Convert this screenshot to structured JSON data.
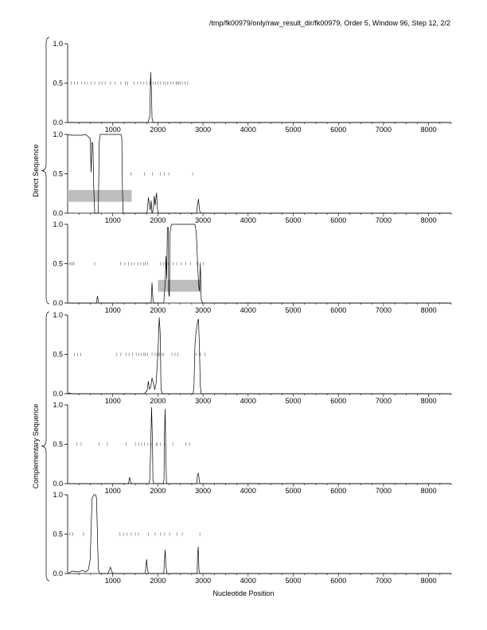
{
  "header": "/tmp/fk00979/only/raw_result_dir/fk00979, Order 5, Window 96, Step 12, 2/2",
  "xlabel": "Nucleotide Position",
  "group_labels": [
    "Direct Sequence",
    "Complementary Sequence"
  ],
  "chart_data": {
    "type": "line",
    "xlim": [
      0,
      8500
    ],
    "ylim": [
      0,
      1
    ],
    "x_ticks": [
      1000,
      2000,
      3000,
      4000,
      5000,
      6000,
      7000,
      8000
    ],
    "y_ticks": [
      "0.0",
      "0.5",
      "1.0"
    ],
    "panels": [
      {
        "group": "Direct Sequence",
        "line": [
          [
            0,
            0
          ],
          [
            1780,
            0
          ],
          [
            1820,
            0.08
          ],
          [
            1840,
            0.64
          ],
          [
            1860,
            0.35
          ],
          [
            1870,
            0.05
          ],
          [
            1900,
            0
          ],
          [
            8500,
            0
          ]
        ],
        "marks": [
          80,
          150,
          220,
          310,
          380,
          440,
          520,
          600,
          700,
          760,
          830,
          950,
          1050,
          1180,
          1280,
          1330,
          1470,
          1550,
          1620,
          1690,
          1750,
          1820,
          1900,
          1950,
          2000,
          2060,
          2120,
          2170,
          2220,
          2280,
          2340,
          2400,
          2430,
          2460,
          2490,
          2540,
          2600,
          2660
        ]
      },
      {
        "group": "Direct Sequence",
        "line": [
          [
            0,
            1
          ],
          [
            80,
            0.99
          ],
          [
            200,
            0.99
          ],
          [
            320,
            0.99
          ],
          [
            400,
            1.0
          ],
          [
            460,
            0.97
          ],
          [
            500,
            0.95
          ],
          [
            520,
            0.52
          ],
          [
            540,
            0.9
          ],
          [
            560,
            0.88
          ],
          [
            580,
            0.3
          ],
          [
            600,
            0
          ],
          [
            680,
            0
          ],
          [
            700,
            0.9
          ],
          [
            720,
            1
          ],
          [
            1180,
            1
          ],
          [
            1200,
            0.96
          ],
          [
            1215,
            0.3
          ],
          [
            1230,
            0
          ],
          [
            1760,
            0
          ],
          [
            1790,
            0.2
          ],
          [
            1810,
            0.12
          ],
          [
            1830,
            0.04
          ],
          [
            1850,
            0.16
          ],
          [
            1870,
            0
          ],
          [
            1900,
            0.05
          ],
          [
            1920,
            0.22
          ],
          [
            1940,
            0.1
          ],
          [
            1970,
            0.26
          ],
          [
            1990,
            0.05
          ],
          [
            2010,
            0
          ],
          [
            2860,
            0
          ],
          [
            2880,
            0.12
          ],
          [
            2900,
            0.18
          ],
          [
            2920,
            0.05
          ],
          [
            2940,
            0
          ],
          [
            8500,
            0
          ]
        ],
        "marks": [
          1400,
          1700,
          1880,
          2050,
          2140,
          2240,
          2770
        ],
        "hsp": [
          0,
          1420,
          0.22
        ]
      },
      {
        "group": "Direct Sequence",
        "line": [
          [
            0,
            0
          ],
          [
            640,
            0
          ],
          [
            660,
            0.09
          ],
          [
            680,
            0.02
          ],
          [
            700,
            0
          ],
          [
            1850,
            0
          ],
          [
            1870,
            0.26
          ],
          [
            1890,
            0.05
          ],
          [
            1910,
            0
          ],
          [
            2130,
            0
          ],
          [
            2160,
            0.25
          ],
          [
            2180,
            0.6
          ],
          [
            2195,
            0.3
          ],
          [
            2210,
            0.96
          ],
          [
            2230,
            0.96
          ],
          [
            2240,
            0.12
          ],
          [
            2255,
            0.08
          ],
          [
            2270,
            0.9
          ],
          [
            2300,
            1
          ],
          [
            2820,
            1
          ],
          [
            2850,
            0.9
          ],
          [
            2870,
            0.65
          ],
          [
            2900,
            0.25
          ],
          [
            2920,
            0.15
          ],
          [
            2940,
            0.5
          ],
          [
            2960,
            0.05
          ],
          [
            2990,
            0
          ],
          [
            8500,
            0
          ]
        ],
        "marks": [
          40,
          80,
          110,
          140,
          600,
          1170,
          1270,
          1350,
          1420,
          1480,
          1560,
          1620,
          1680,
          1720,
          1770,
          2060,
          2120,
          2170,
          2230,
          2340,
          2420,
          2520,
          2620,
          2720,
          2860,
          2940,
          3010
        ],
        "hsp": [
          2000,
          2950,
          0.22
        ]
      },
      {
        "group": "Complementary Sequence",
        "line": [
          [
            0,
            0
          ],
          [
            40,
            0.01
          ],
          [
            80,
            0
          ],
          [
            1700,
            0
          ],
          [
            1760,
            0.04
          ],
          [
            1790,
            0.16
          ],
          [
            1810,
            0.06
          ],
          [
            1840,
            0.08
          ],
          [
            1870,
            0.2
          ],
          [
            1900,
            0.14
          ],
          [
            1930,
            0.05
          ],
          [
            1960,
            0.13
          ],
          [
            2000,
            0.5
          ],
          [
            2030,
            0.97
          ],
          [
            2050,
            0.78
          ],
          [
            2070,
            0.05
          ],
          [
            2100,
            0
          ],
          [
            2780,
            0
          ],
          [
            2800,
            0.1
          ],
          [
            2820,
            0.6
          ],
          [
            2840,
            0.75
          ],
          [
            2870,
            0.88
          ],
          [
            2900,
            0.95
          ],
          [
            2920,
            0.6
          ],
          [
            2940,
            0.1
          ],
          [
            2960,
            0
          ],
          [
            8500,
            0
          ]
        ],
        "marks": [
          150,
          220,
          290,
          1090,
          1180,
          1290,
          1360,
          1440,
          1520,
          1580,
          1630,
          1690,
          1720,
          1770,
          1870,
          1940,
          1980,
          2030,
          2090,
          2130,
          2310,
          2380,
          2440,
          2850,
          2940,
          3040
        ]
      },
      {
        "group": "Complementary Sequence",
        "line": [
          [
            0,
            0
          ],
          [
            1350,
            0
          ],
          [
            1370,
            0.08
          ],
          [
            1390,
            0.04
          ],
          [
            1410,
            0
          ],
          [
            1800,
            0
          ],
          [
            1820,
            0.05
          ],
          [
            1840,
            0.45
          ],
          [
            1860,
            0.97
          ],
          [
            1880,
            0.5
          ],
          [
            1890,
            0.05
          ],
          [
            1910,
            0
          ],
          [
            2120,
            0
          ],
          [
            2135,
            0.05
          ],
          [
            2145,
            0.55
          ],
          [
            2160,
            0.95
          ],
          [
            2175,
            0.45
          ],
          [
            2190,
            0.02
          ],
          [
            2200,
            0
          ],
          [
            2860,
            0
          ],
          [
            2880,
            0.12
          ],
          [
            2900,
            0.13
          ],
          [
            2920,
            0.02
          ],
          [
            2940,
            0
          ],
          [
            8500,
            0
          ]
        ],
        "marks": [
          200,
          300,
          700,
          880,
          1300,
          1500,
          1580,
          1640,
          1700,
          1780,
          1850,
          1960,
          1990,
          2060,
          2150,
          2330,
          2620,
          2700
        ]
      },
      {
        "group": "Complementary Sequence",
        "line": [
          [
            0,
            0
          ],
          [
            100,
            0.03
          ],
          [
            250,
            0.02
          ],
          [
            330,
            0.04
          ],
          [
            400,
            0.02
          ],
          [
            460,
            0.05
          ],
          [
            500,
            0.18
          ],
          [
            540,
            0.95
          ],
          [
            580,
            1
          ],
          [
            620,
            1
          ],
          [
            640,
            0.96
          ],
          [
            660,
            0.5
          ],
          [
            680,
            0.05
          ],
          [
            710,
            0
          ],
          [
            900,
            0
          ],
          [
            920,
            0.04
          ],
          [
            950,
            0.08
          ],
          [
            980,
            0.02
          ],
          [
            1010,
            0
          ],
          [
            1720,
            0
          ],
          [
            1750,
            0.18
          ],
          [
            1770,
            0.05
          ],
          [
            1790,
            0
          ],
          [
            2130,
            0
          ],
          [
            2140,
            0.1
          ],
          [
            2160,
            0.3
          ],
          [
            2180,
            0.1
          ],
          [
            2200,
            0
          ],
          [
            2870,
            0
          ],
          [
            2880,
            0.25
          ],
          [
            2895,
            0.34
          ],
          [
            2910,
            0.05
          ],
          [
            2930,
            0
          ],
          [
            8500,
            0
          ]
        ],
        "marks": [
          50,
          110,
          350,
          1160,
          1240,
          1320,
          1410,
          1500,
          1570,
          1790,
          1940,
          2060,
          2150,
          2260,
          2420,
          2540,
          2930
        ]
      }
    ]
  }
}
